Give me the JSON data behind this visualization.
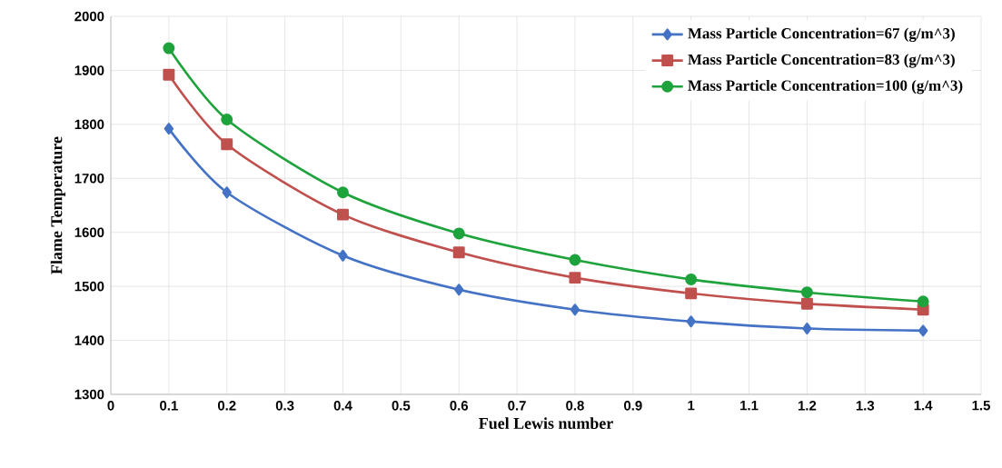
{
  "chart_data": {
    "type": "line",
    "xlabel": "Fuel Lewis number",
    "ylabel": "Flame Temperature",
    "x": [
      0.1,
      0.2,
      0.4,
      0.6,
      0.8,
      1.0,
      1.2,
      1.4
    ],
    "series": [
      {
        "name": "Mass Particle Concentration=67 (g/m^3)",
        "color": "#4472c4",
        "marker": "diamond",
        "values": [
          1792,
          1674,
          1557,
          1494,
          1457,
          1435,
          1422,
          1418
        ]
      },
      {
        "name": "Mass Particle Concentration=83 (g/m^3)",
        "color": "#c0504d",
        "marker": "square",
        "values": [
          1892,
          1763,
          1633,
          1563,
          1516,
          1487,
          1468,
          1457
        ]
      },
      {
        "name": "Mass Particle Concentration=100 (g/m^3)",
        "color": "#1ea33c",
        "marker": "circle",
        "values": [
          1941,
          1809,
          1674,
          1598,
          1549,
          1513,
          1489,
          1472
        ]
      }
    ],
    "xlim": [
      0,
      1.5
    ],
    "xticks": [
      0,
      0.1,
      0.2,
      0.3,
      0.4,
      0.5,
      0.6,
      0.7,
      0.8,
      0.9,
      1,
      1.1,
      1.2,
      1.3,
      1.4,
      1.5
    ],
    "ylim": [
      1300,
      2000
    ],
    "yticks": [
      1300,
      1400,
      1500,
      1600,
      1700,
      1800,
      1900,
      2000
    ],
    "grid": true,
    "legend": "top right",
    "line_style": "solid"
  }
}
